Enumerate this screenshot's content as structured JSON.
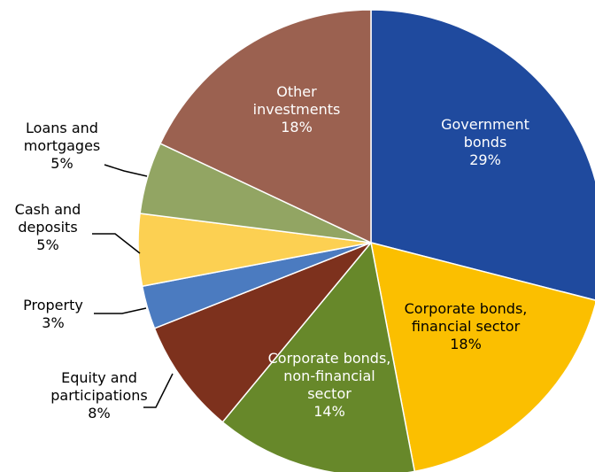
{
  "chart_data": {
    "type": "pie",
    "slices": [
      {
        "label": [
          "Government",
          "bonds"
        ],
        "pct_label": "29%",
        "value": 29,
        "color": "#1f4a9e"
      },
      {
        "label": [
          "Corporate bonds,",
          "financial sector"
        ],
        "pct_label": "18%",
        "value": 18,
        "color": "#fbbf00"
      },
      {
        "label": [
          "Corporate bonds,",
          "non-financial",
          "sector"
        ],
        "pct_label": "14%",
        "value": 14,
        "color": "#67882a"
      },
      {
        "label": [
          "Equity and",
          "participations"
        ],
        "pct_label": "8%",
        "value": 8,
        "color": "#7d311d"
      },
      {
        "label": [
          "Property"
        ],
        "pct_label": "3%",
        "value": 3,
        "color": "#4b7bc0"
      },
      {
        "label": [
          "Cash and",
          "deposits"
        ],
        "pct_label": "5%",
        "value": 5,
        "color": "#fcd052"
      },
      {
        "label": [
          "Loans and",
          "mortgages"
        ],
        "pct_label": "5%",
        "value": 5,
        "color": "#92a563"
      },
      {
        "label": [
          "Other",
          "investments"
        ],
        "pct_label": "18%",
        "value": 18,
        "color": "#9b6150"
      }
    ]
  }
}
